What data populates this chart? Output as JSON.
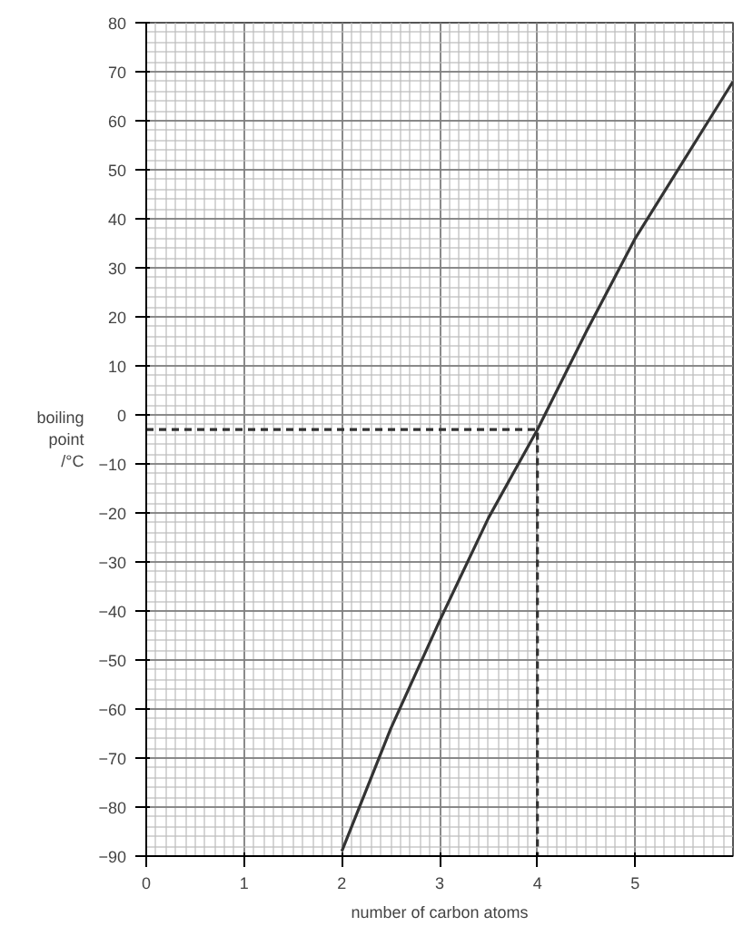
{
  "chart_data": {
    "type": "line",
    "xlabel": "number of carbon atoms",
    "ylabel": "boiling\npoint\n/°C",
    "xlim": [
      0,
      6
    ],
    "ylim": [
      -90,
      80
    ],
    "xticks": [
      0,
      1,
      2,
      3,
      4,
      5
    ],
    "yticks": [
      -90,
      -80,
      -70,
      -60,
      -50,
      -40,
      -30,
      -20,
      -10,
      0,
      10,
      20,
      30,
      40,
      50,
      60,
      70,
      80
    ],
    "grid": true,
    "marker": "none",
    "series": [
      {
        "color": "#333333",
        "line_style": "solid",
        "x": [
          2,
          2.5,
          3,
          3.5,
          4,
          4.5,
          5,
          5.5,
          5.75,
          6
        ],
        "values": [
          -89,
          -64,
          -42,
          -21,
          -3,
          17,
          36,
          52,
          60,
          68
        ]
      },
      {
        "color": "#333333",
        "line_style": "dashed",
        "x": [
          0,
          4,
          4
        ],
        "values": [
          -3,
          -3,
          -90
        ]
      }
    ]
  }
}
